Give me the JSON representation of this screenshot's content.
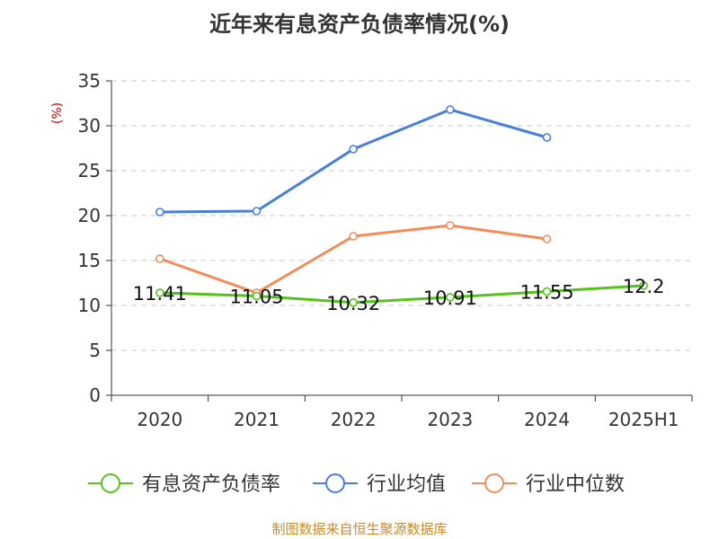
{
  "chart_data": {
    "type": "line",
    "title": "近年来有息资产负债率情况(%)",
    "ylabel": "(%)",
    "categories": [
      "2020",
      "2021",
      "2022",
      "2023",
      "2024",
      "2025H1"
    ],
    "ylim": [
      0,
      35
    ],
    "yticks": [
      0,
      5,
      10,
      15,
      20,
      25,
      30,
      35
    ],
    "grid": true,
    "legend_position": "bottom",
    "series": [
      {
        "name": "有息资产负债率",
        "color": "#52c41a",
        "values": [
          11.41,
          11.05,
          10.32,
          10.91,
          11.55,
          12.2
        ],
        "labels": [
          "11.41",
          "11.05",
          "10.32",
          "10.91",
          "11.55",
          "12.2"
        ]
      },
      {
        "name": "行业均值",
        "color": "#4a7fd9",
        "values": [
          20.4,
          20.5,
          27.4,
          31.8,
          28.7,
          null
        ]
      },
      {
        "name": "行业中位数",
        "color": "#f28c5b",
        "values": [
          15.2,
          11.4,
          17.7,
          18.9,
          17.4,
          null
        ]
      }
    ]
  },
  "footer": "制图数据来自恒生聚源数据库"
}
